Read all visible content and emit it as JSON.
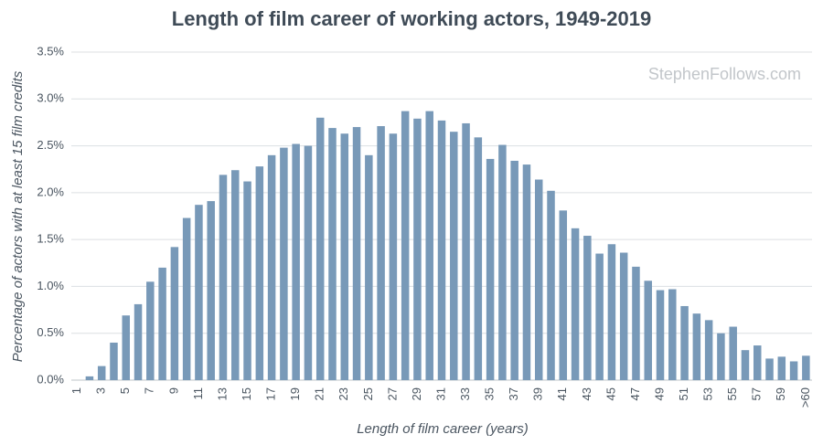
{
  "chart_data": {
    "type": "bar",
    "title": "Length of film career of working actors, 1949-2019",
    "watermark": "StephenFollows.com",
    "x_label": "Length of film career (years)",
    "y_label": "Percentage of actors with at least 15 film credits",
    "categories": [
      "1",
      null,
      "3",
      null,
      "5",
      null,
      "7",
      null,
      "9",
      null,
      "11",
      null,
      "13",
      null,
      "15",
      null,
      "17",
      null,
      "19",
      null,
      "21",
      null,
      "23",
      null,
      "25",
      null,
      "27",
      null,
      "29",
      null,
      "31",
      null,
      "33",
      null,
      "35",
      null,
      "37",
      null,
      "39",
      null,
      "41",
      null,
      "43",
      null,
      "45",
      null,
      "47",
      null,
      "49",
      null,
      "51",
      null,
      "53",
      null,
      "55",
      null,
      "57",
      null,
      "59",
      null,
      ">60"
    ],
    "values": [
      0,
      0.04,
      0.15,
      0.4,
      0.69,
      0.81,
      1.05,
      1.2,
      1.42,
      1.73,
      1.87,
      1.91,
      2.19,
      2.24,
      2.12,
      2.28,
      2.4,
      2.48,
      2.52,
      2.5,
      2.8,
      2.69,
      2.63,
      2.7,
      2.4,
      2.71,
      2.63,
      2.87,
      2.79,
      2.87,
      2.77,
      2.65,
      2.74,
      2.59,
      2.36,
      2.51,
      2.34,
      2.3,
      2.14,
      2.02,
      1.81,
      1.62,
      1.54,
      1.35,
      1.45,
      1.36,
      1.21,
      1.06,
      0.96,
      0.97,
      0.79,
      0.71,
      0.64,
      0.5,
      0.57,
      0.32,
      0.37,
      0.23,
      0.25,
      0.2,
      0.26
    ],
    "color": "#7899b8",
    "ylim": [
      0,
      3.5
    ],
    "yticks": [
      {
        "value": 0,
        "label": "0.0%"
      },
      {
        "value": 0.5,
        "label": "0.5%"
      },
      {
        "value": 1,
        "label": "1.0%"
      },
      {
        "value": 1.5,
        "label": "1.5%"
      },
      {
        "value": 2,
        "label": "2.0%"
      },
      {
        "value": 2.5,
        "label": "2.5%"
      },
      {
        "value": 3,
        "label": "3.0%"
      },
      {
        "value": 3.5,
        "label": "3.5%"
      }
    ],
    "grid": true
  }
}
